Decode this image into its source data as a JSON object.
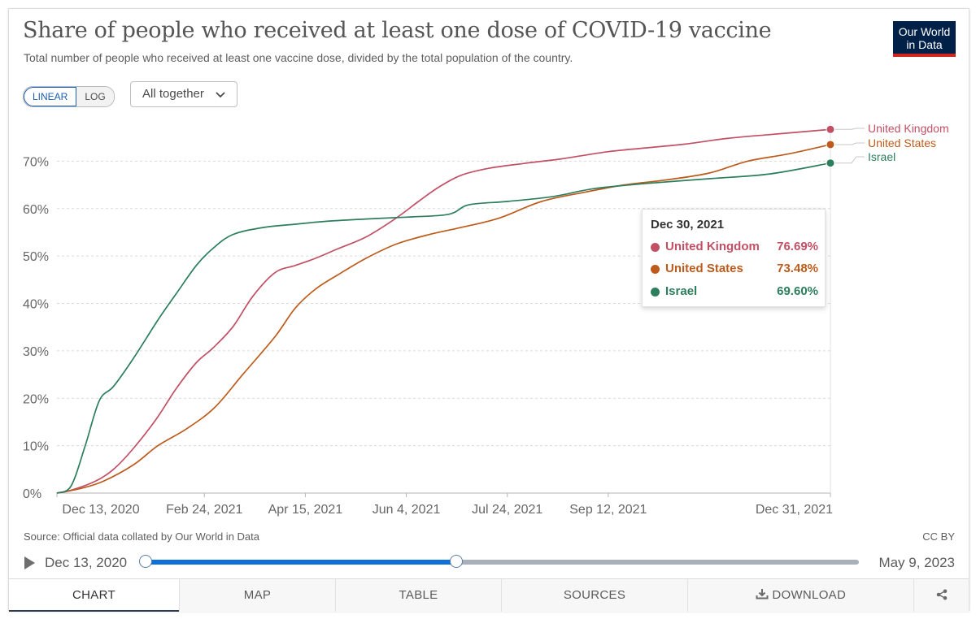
{
  "header": {
    "title": "Share of people who received at least one dose of COVID-19 vaccine",
    "subtitle": "Total number of people who received at least one vaccine dose, divided by the total population of the country.",
    "logo_line1": "Our World",
    "logo_line2": "in Data"
  },
  "controls": {
    "linear_label": "LINEAR",
    "log_label": "LOG",
    "dropdown_label": "All together",
    "active_scale": "linear"
  },
  "chart_data": {
    "type": "line",
    "title": "Share of people who received at least one dose of COVID-19 vaccine",
    "xlabel": "",
    "ylabel": "",
    "ylim": [
      0,
      80
    ],
    "xlim": [
      "2020-12-13",
      "2021-12-31"
    ],
    "y_ticks": [
      "0%",
      "10%",
      "20%",
      "30%",
      "40%",
      "50%",
      "60%",
      "70%"
    ],
    "x_ticks": [
      "Dec 13, 2020",
      "Feb 24, 2021",
      "Apr 15, 2021",
      "Jun 4, 2021",
      "Jul 24, 2021",
      "Sep 12, 2021",
      "Dec 31, 2021"
    ],
    "x_tick_dates": [
      "2020-12-13",
      "2021-02-24",
      "2021-04-15",
      "2021-06-04",
      "2021-07-24",
      "2021-09-12",
      "2021-12-31"
    ],
    "grid": true,
    "legend": "end-of-line labels",
    "series": [
      {
        "name": "United Kingdom",
        "color": "#c15065",
        "x": [
          "2020-12-13",
          "2020-12-20",
          "2021-01-01",
          "2021-01-10",
          "2021-01-20",
          "2021-01-31",
          "2021-02-10",
          "2021-02-20",
          "2021-02-28",
          "2021-03-10",
          "2021-03-20",
          "2021-03-31",
          "2021-04-10",
          "2021-04-20",
          "2021-05-01",
          "2021-05-15",
          "2021-05-30",
          "2021-06-10",
          "2021-06-20",
          "2021-07-01",
          "2021-07-15",
          "2021-08-01",
          "2021-08-20",
          "2021-09-12",
          "2021-10-01",
          "2021-10-20",
          "2021-11-10",
          "2021-12-01",
          "2021-12-20",
          "2021-12-31"
        ],
        "y": [
          0,
          0.6,
          2.5,
          5,
          9.5,
          15.5,
          22,
          27.5,
          30.5,
          35,
          41.5,
          46.5,
          48,
          49.5,
          51.5,
          54,
          58,
          61.5,
          64.5,
          67,
          68.5,
          69.5,
          70.5,
          72,
          72.8,
          73.6,
          74.8,
          75.6,
          76.3,
          76.7
        ]
      },
      {
        "name": "United States",
        "color": "#bd5b1c",
        "x": [
          "2020-12-13",
          "2020-12-25",
          "2021-01-05",
          "2021-01-20",
          "2021-02-01",
          "2021-02-15",
          "2021-03-01",
          "2021-03-15",
          "2021-03-31",
          "2021-04-10",
          "2021-04-20",
          "2021-05-01",
          "2021-05-15",
          "2021-05-30",
          "2021-06-15",
          "2021-07-01",
          "2021-07-20",
          "2021-08-10",
          "2021-09-01",
          "2021-09-20",
          "2021-10-10",
          "2021-11-01",
          "2021-11-20",
          "2021-12-10",
          "2021-12-31"
        ],
        "y": [
          0,
          1,
          2.5,
          6,
          10,
          13.5,
          18,
          25,
          33,
          39,
          43,
          46,
          49.5,
          52.5,
          54.5,
          56,
          58,
          61.5,
          63.5,
          65,
          66,
          67.5,
          70,
          71.5,
          73.5
        ]
      },
      {
        "name": "Israel",
        "color": "#2c7e5d",
        "x": [
          "2020-12-13",
          "2020-12-20",
          "2020-12-27",
          "2021-01-03",
          "2021-01-10",
          "2021-01-20",
          "2021-02-01",
          "2021-02-10",
          "2021-02-20",
          "2021-02-28",
          "2021-03-10",
          "2021-03-25",
          "2021-04-10",
          "2021-04-25",
          "2021-05-15",
          "2021-06-04",
          "2021-06-25",
          "2021-07-05",
          "2021-07-24",
          "2021-08-15",
          "2021-09-05",
          "2021-10-01",
          "2021-11-01",
          "2021-12-01",
          "2021-12-31"
        ],
        "y": [
          0,
          1.5,
          10,
          19.5,
          22.5,
          28.5,
          36.5,
          42,
          48,
          51.5,
          54.5,
          56,
          56.7,
          57.3,
          57.8,
          58.2,
          58.8,
          60.8,
          61.5,
          62.5,
          64.2,
          65.3,
          66.3,
          67.3,
          69.6
        ]
      }
    ]
  },
  "line_labels": [
    {
      "name": "United Kingdom",
      "color": "#c15065"
    },
    {
      "name": "United States",
      "color": "#bd5b1c"
    },
    {
      "name": "Israel",
      "color": "#2c7e5d"
    }
  ],
  "tooltip": {
    "date": "Dec 30, 2021",
    "rows": [
      {
        "name": "United Kingdom",
        "value": "76.69%",
        "color": "#c15065"
      },
      {
        "name": "United States",
        "value": "73.48%",
        "color": "#bd5b1c"
      },
      {
        "name": "Israel",
        "value": "69.60%",
        "color": "#2c7e5d"
      }
    ]
  },
  "footer": {
    "source": "Source: Official data collated by Our World in Data",
    "license": "CC BY"
  },
  "timeline": {
    "start_label": "Dec 13, 2020",
    "end_label": "May 9, 2023",
    "selected_fraction": 0.436
  },
  "tabs": [
    {
      "label": "CHART",
      "active": true,
      "icon": ""
    },
    {
      "label": "MAP",
      "active": false,
      "icon": ""
    },
    {
      "label": "TABLE",
      "active": false,
      "icon": ""
    },
    {
      "label": "SOURCES",
      "active": false,
      "icon": ""
    },
    {
      "label": "DOWNLOAD",
      "active": false,
      "icon": "download-icon"
    },
    {
      "label": "",
      "active": false,
      "icon": "share-icon"
    }
  ]
}
